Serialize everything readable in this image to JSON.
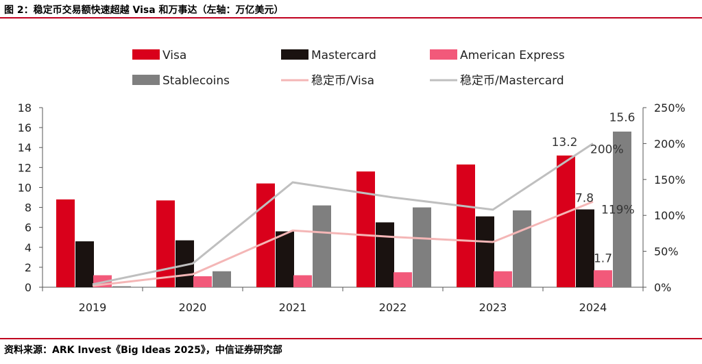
{
  "header": {
    "title": "图 2：稳定币交易额快速超越 Visa 和万事达（左轴：万亿美元）"
  },
  "footer": {
    "source": "资料来源：ARK Invest《Big Ideas 2025》，中信证券研究部"
  },
  "chart_data": {
    "type": "bar",
    "title": "图 2：稳定币交易额快速超越 Visa 和万事达（左轴：万亿美元）",
    "categories": [
      "2019",
      "2020",
      "2021",
      "2022",
      "2023",
      "2024"
    ],
    "series": [
      {
        "name": "Visa",
        "kind": "bar",
        "axis": "left",
        "color": "#d9001b",
        "values": [
          8.8,
          8.7,
          10.4,
          11.6,
          12.3,
          13.2
        ]
      },
      {
        "name": "Mastercard",
        "kind": "bar",
        "axis": "left",
        "color": "#1a1210",
        "values": [
          4.6,
          4.7,
          5.6,
          6.5,
          7.1,
          7.8
        ]
      },
      {
        "name": "American Express",
        "kind": "bar",
        "axis": "left",
        "color": "#f2597a",
        "values": [
          1.2,
          1.1,
          1.2,
          1.5,
          1.6,
          1.7
        ]
      },
      {
        "name": "Stablecoins",
        "kind": "bar",
        "axis": "left",
        "color": "#7f7f7f",
        "values": [
          0.1,
          1.6,
          8.2,
          8.0,
          7.7,
          15.6
        ]
      },
      {
        "name": "稳定币/Visa",
        "kind": "line",
        "axis": "right",
        "color": "#f4b6b6",
        "values": [
          0.02,
          0.18,
          0.79,
          0.7,
          0.63,
          1.19
        ]
      },
      {
        "name": "稳定币/Mastercard",
        "kind": "line",
        "axis": "right",
        "color": "#bfbfbf",
        "values": [
          0.04,
          0.33,
          1.46,
          1.25,
          1.08,
          2.0
        ]
      }
    ],
    "left_axis": {
      "min": 0,
      "max": 18,
      "ticks": [
        "0",
        "2",
        "4",
        "6",
        "8",
        "10",
        "12",
        "14",
        "16",
        "18"
      ]
    },
    "right_axis": {
      "min": 0,
      "max": 2.5,
      "ticks": [
        "0%",
        "50%",
        "100%",
        "150%",
        "200%",
        "250%"
      ]
    },
    "annotations": [
      {
        "text": "13.2",
        "series": "Visa",
        "category": "2024"
      },
      {
        "text": "7.8",
        "series": "Mastercard",
        "category": "2024"
      },
      {
        "text": "1.7",
        "series": "American Express",
        "category": "2024"
      },
      {
        "text": "15.6",
        "series": "Stablecoins",
        "category": "2024"
      },
      {
        "text": "200%",
        "series": "稳定币/Mastercard",
        "category": "2024"
      },
      {
        "text": "119%",
        "series": "稳定币/Visa",
        "category": "2024"
      }
    ],
    "legend_position": "top",
    "grid": false
  }
}
